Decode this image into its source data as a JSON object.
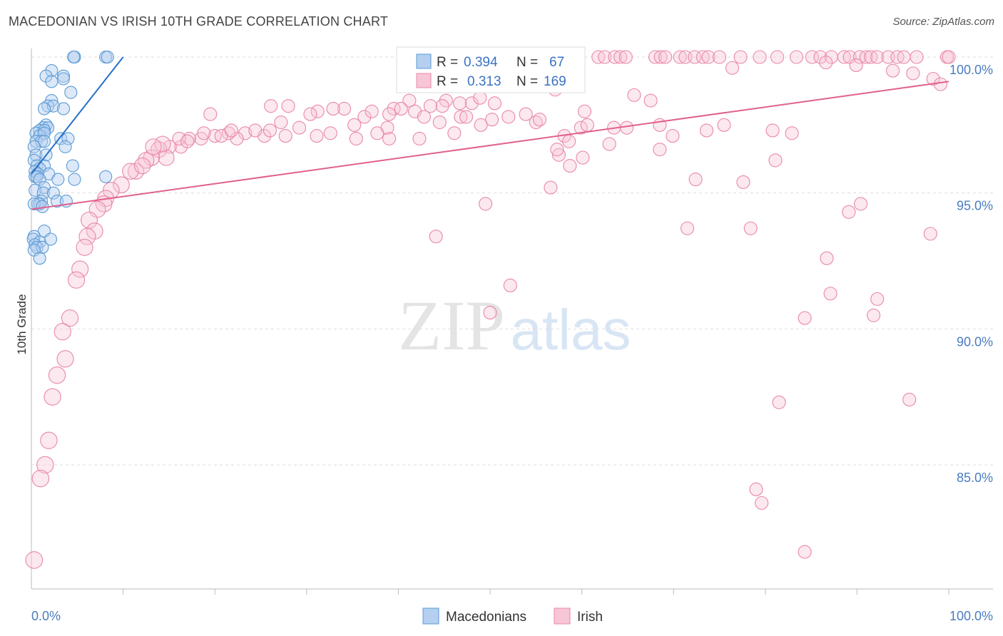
{
  "title": "MACEDONIAN VS IRISH 10TH GRADE CORRELATION CHART",
  "source": "Source: ZipAtlas.com",
  "watermark": {
    "zip": "ZIP",
    "atlas": "atlas"
  },
  "colors": {
    "blue": "#5b9bd5",
    "blue_line": "#2670c9",
    "blue_fill": "#b4cff0",
    "pink": "#e888a8",
    "pink_line": "#e0608e",
    "pink_fill": "#f7c6d6",
    "tick_text": "#4a7cc0",
    "grid": "#dddddd",
    "axis": "#bbbbbb",
    "text": "#333333"
  },
  "chart_data": {
    "type": "scatter",
    "ylabel": "10th Grade",
    "xlim": [
      0,
      100
    ],
    "ylim": [
      80.5,
      100.6
    ],
    "x_tick_labels": {
      "left": "0.0%",
      "right": "100.0%"
    },
    "y_ticks": [
      {
        "value": 100,
        "label": "100.0%"
      },
      {
        "value": 95,
        "label": "95.0%"
      },
      {
        "value": 90,
        "label": "90.0%"
      },
      {
        "value": 85,
        "label": "85.0%"
      }
    ],
    "legend_stats": [
      {
        "r_label": "R =",
        "r_value": "0.394",
        "n_label": "N =",
        "n_value": "67"
      },
      {
        "r_label": "R =",
        "r_value": "0.313",
        "n_label": "N =",
        "n_value": "169"
      }
    ],
    "series": [
      {
        "name": "Macedonians",
        "color": "#5b9bd5",
        "trend": {
          "x": [
            0.0,
            10.0
          ],
          "y": [
            95.7,
            100.0
          ]
        },
        "points": [
          [
            4.7,
            100
          ],
          [
            4.6,
            100
          ],
          [
            8.1,
            100
          ],
          [
            8.3,
            100
          ],
          [
            2.2,
            99.5
          ],
          [
            1.6,
            99.3
          ],
          [
            3.5,
            99.3
          ],
          [
            3.5,
            99.2
          ],
          [
            2.2,
            99.1
          ],
          [
            4.3,
            98.7
          ],
          [
            2.2,
            98.4
          ],
          [
            1.8,
            98.2
          ],
          [
            2.4,
            98.2
          ],
          [
            1.4,
            98.1
          ],
          [
            3.5,
            98.1
          ],
          [
            1.6,
            97.5
          ],
          [
            1.3,
            97.4
          ],
          [
            1.8,
            97.4
          ],
          [
            0.9,
            97.3
          ],
          [
            1.4,
            97.3
          ],
          [
            0.5,
            97.2
          ],
          [
            0.9,
            97.1
          ],
          [
            1.4,
            97.2
          ],
          [
            3.2,
            97.0
          ],
          [
            4.0,
            97.0
          ],
          [
            0.5,
            96.9
          ],
          [
            1.1,
            96.9
          ],
          [
            1.4,
            96.9
          ],
          [
            3.7,
            96.7
          ],
          [
            0.3,
            96.7
          ],
          [
            0.5,
            96.4
          ],
          [
            1.6,
            96.4
          ],
          [
            0.3,
            96.2
          ],
          [
            0.6,
            96.0
          ],
          [
            1.4,
            96.0
          ],
          [
            4.5,
            96.0
          ],
          [
            0.9,
            95.9
          ],
          [
            0.4,
            95.8
          ],
          [
            0.7,
            95.7
          ],
          [
            1.9,
            95.7
          ],
          [
            0.4,
            95.6
          ],
          [
            0.6,
            95.6
          ],
          [
            8.1,
            95.6
          ],
          [
            2.9,
            95.5
          ],
          [
            4.7,
            95.5
          ],
          [
            0.9,
            95.5
          ],
          [
            1.4,
            95.2
          ],
          [
            0.4,
            95.1
          ],
          [
            1.3,
            95.0
          ],
          [
            2.4,
            95.0
          ],
          [
            2.8,
            94.7
          ],
          [
            3.8,
            94.7
          ],
          [
            1.1,
            94.7
          ],
          [
            0.7,
            94.6
          ],
          [
            0.9,
            94.6
          ],
          [
            0.3,
            94.6
          ],
          [
            1.2,
            94.5
          ],
          [
            1.4,
            93.6
          ],
          [
            0.3,
            93.4
          ],
          [
            2.1,
            93.3
          ],
          [
            0.2,
            93.3
          ],
          [
            0.9,
            93.2
          ],
          [
            0.4,
            93.1
          ],
          [
            0.6,
            93.0
          ],
          [
            1.2,
            93.0
          ],
          [
            0.3,
            92.9
          ],
          [
            0.9,
            92.6
          ]
        ]
      },
      {
        "name": "Irish",
        "color": "#e888a8",
        "trend": {
          "x": [
            0.0,
            100.0
          ],
          "y": [
            94.4,
            99.1
          ]
        },
        "points": [
          [
            61.8,
            100
          ],
          [
            62.5,
            100
          ],
          [
            63.6,
            100
          ],
          [
            64.2,
            100
          ],
          [
            64.8,
            100
          ],
          [
            68.0,
            100
          ],
          [
            68.6,
            100
          ],
          [
            69.1,
            100
          ],
          [
            70.7,
            100
          ],
          [
            71.3,
            100
          ],
          [
            72.3,
            100
          ],
          [
            73.2,
            100
          ],
          [
            73.8,
            100
          ],
          [
            75.0,
            100
          ],
          [
            77.3,
            100
          ],
          [
            79.4,
            100
          ],
          [
            81.3,
            100
          ],
          [
            83.4,
            100
          ],
          [
            85.1,
            100
          ],
          [
            86.0,
            100
          ],
          [
            87.2,
            100
          ],
          [
            88.6,
            100
          ],
          [
            89.2,
            100
          ],
          [
            90.3,
            100
          ],
          [
            91.0,
            100
          ],
          [
            91.5,
            100
          ],
          [
            92.2,
            100
          ],
          [
            93.4,
            100
          ],
          [
            94.4,
            100
          ],
          [
            95.1,
            100
          ],
          [
            96.5,
            100
          ],
          [
            99.8,
            100
          ],
          [
            100.0,
            100
          ],
          [
            76.4,
            99.6
          ],
          [
            86.6,
            99.8
          ],
          [
            89.9,
            99.7
          ],
          [
            96.1,
            99.4
          ],
          [
            93.9,
            99.5
          ],
          [
            98.3,
            99.2
          ],
          [
            99.1,
            99.0
          ],
          [
            58.9,
            99.5
          ],
          [
            54.1,
            99.3
          ],
          [
            57.1,
            98.8
          ],
          [
            48.0,
            98.3
          ],
          [
            45.2,
            98.4
          ],
          [
            41.2,
            98.4
          ],
          [
            48.9,
            98.5
          ],
          [
            50.5,
            98.3
          ],
          [
            46.7,
            98.3
          ],
          [
            44.8,
            98.2
          ],
          [
            41.8,
            98.0
          ],
          [
            43.5,
            98.2
          ],
          [
            39.5,
            98.1
          ],
          [
            34.1,
            98.1
          ],
          [
            32.9,
            98.1
          ],
          [
            28.0,
            98.2
          ],
          [
            26.1,
            98.2
          ],
          [
            19.5,
            97.9
          ],
          [
            36.3,
            97.8
          ],
          [
            31.2,
            98.0
          ],
          [
            37.1,
            98.0
          ],
          [
            30.4,
            97.9
          ],
          [
            39.0,
            97.9
          ],
          [
            46.8,
            97.8
          ],
          [
            52.0,
            97.8
          ],
          [
            55.0,
            97.6
          ],
          [
            60.3,
            98.0
          ],
          [
            59.9,
            97.4
          ],
          [
            63.5,
            97.4
          ],
          [
            64.9,
            97.4
          ],
          [
            68.5,
            97.5
          ],
          [
            75.5,
            97.5
          ],
          [
            80.8,
            97.3
          ],
          [
            82.9,
            97.2
          ],
          [
            73.6,
            97.3
          ],
          [
            69.9,
            97.1
          ],
          [
            58.1,
            97.1
          ],
          [
            42.3,
            97.0
          ],
          [
            39.0,
            97.0
          ],
          [
            35.4,
            97.0
          ],
          [
            31.1,
            97.1
          ],
          [
            27.7,
            97.1
          ],
          [
            25.4,
            97.1
          ],
          [
            23.3,
            97.2
          ],
          [
            22.4,
            97.0
          ],
          [
            21.5,
            97.2
          ],
          [
            20.0,
            97.1
          ],
          [
            18.5,
            97.0
          ],
          [
            17.2,
            97.0
          ],
          [
            16.3,
            96.7
          ],
          [
            15.1,
            96.7
          ],
          [
            13.9,
            96.6
          ],
          [
            14.7,
            96.3
          ],
          [
            13.1,
            96.3
          ],
          [
            12.5,
            96.2
          ],
          [
            11.4,
            95.8
          ],
          [
            10.8,
            95.8
          ],
          [
            9.8,
            95.3
          ],
          [
            8.7,
            95.1
          ],
          [
            8.1,
            94.8
          ],
          [
            7.9,
            94.6
          ],
          [
            7.2,
            94.4
          ],
          [
            6.3,
            94.0
          ],
          [
            6.9,
            93.6
          ],
          [
            6.1,
            93.4
          ],
          [
            5.8,
            93.0
          ],
          [
            5.3,
            92.2
          ],
          [
            4.9,
            91.8
          ],
          [
            4.2,
            90.4
          ],
          [
            3.4,
            89.9
          ],
          [
            3.7,
            88.9
          ],
          [
            2.8,
            88.3
          ],
          [
            2.3,
            87.5
          ],
          [
            1.9,
            85.9
          ],
          [
            1.5,
            85.0
          ],
          [
            1.0,
            84.5
          ],
          [
            0.3,
            81.5
          ],
          [
            57.5,
            96.4
          ],
          [
            60.1,
            96.3
          ],
          [
            58.7,
            96.0
          ],
          [
            57.3,
            96.6
          ],
          [
            63.0,
            96.8
          ],
          [
            68.5,
            96.6
          ],
          [
            81.1,
            96.2
          ],
          [
            77.6,
            95.4
          ],
          [
            72.4,
            95.5
          ],
          [
            56.6,
            95.2
          ],
          [
            49.5,
            94.6
          ],
          [
            71.5,
            93.7
          ],
          [
            89.1,
            94.3
          ],
          [
            90.4,
            94.6
          ],
          [
            78.4,
            93.7
          ],
          [
            98.0,
            93.5
          ],
          [
            44.1,
            93.4
          ],
          [
            86.7,
            92.6
          ],
          [
            87.1,
            91.3
          ],
          [
            92.2,
            91.1
          ],
          [
            52.2,
            91.6
          ],
          [
            91.8,
            90.5
          ],
          [
            50.0,
            90.6
          ],
          [
            84.3,
            90.4
          ],
          [
            81.5,
            87.3
          ],
          [
            95.7,
            87.4
          ],
          [
            79.0,
            84.1
          ],
          [
            79.6,
            83.6
          ],
          [
            84.3,
            81.8
          ],
          [
            58.6,
            96.9
          ],
          [
            60.6,
            97.5
          ],
          [
            38.8,
            97.4
          ],
          [
            37.7,
            97.2
          ],
          [
            44.5,
            97.6
          ],
          [
            50.2,
            97.7
          ],
          [
            53.9,
            97.9
          ],
          [
            32.6,
            97.2
          ],
          [
            29.2,
            97.4
          ],
          [
            26.0,
            97.3
          ],
          [
            24.4,
            97.3
          ],
          [
            20.7,
            97.1
          ],
          [
            18.8,
            97.2
          ],
          [
            16.1,
            97.0
          ],
          [
            17.0,
            96.9
          ],
          [
            14.3,
            96.8
          ],
          [
            13.3,
            96.7
          ],
          [
            12.1,
            96.0
          ],
          [
            21.8,
            97.3
          ],
          [
            46.1,
            97.2
          ],
          [
            49.0,
            97.5
          ],
          [
            35.2,
            97.5
          ],
          [
            27.2,
            97.6
          ],
          [
            40.3,
            98.1
          ],
          [
            47.4,
            97.8
          ],
          [
            42.8,
            97.8
          ],
          [
            55.4,
            97.7
          ],
          [
            65.7,
            98.6
          ],
          [
            67.5,
            98.4
          ]
        ]
      }
    ]
  }
}
